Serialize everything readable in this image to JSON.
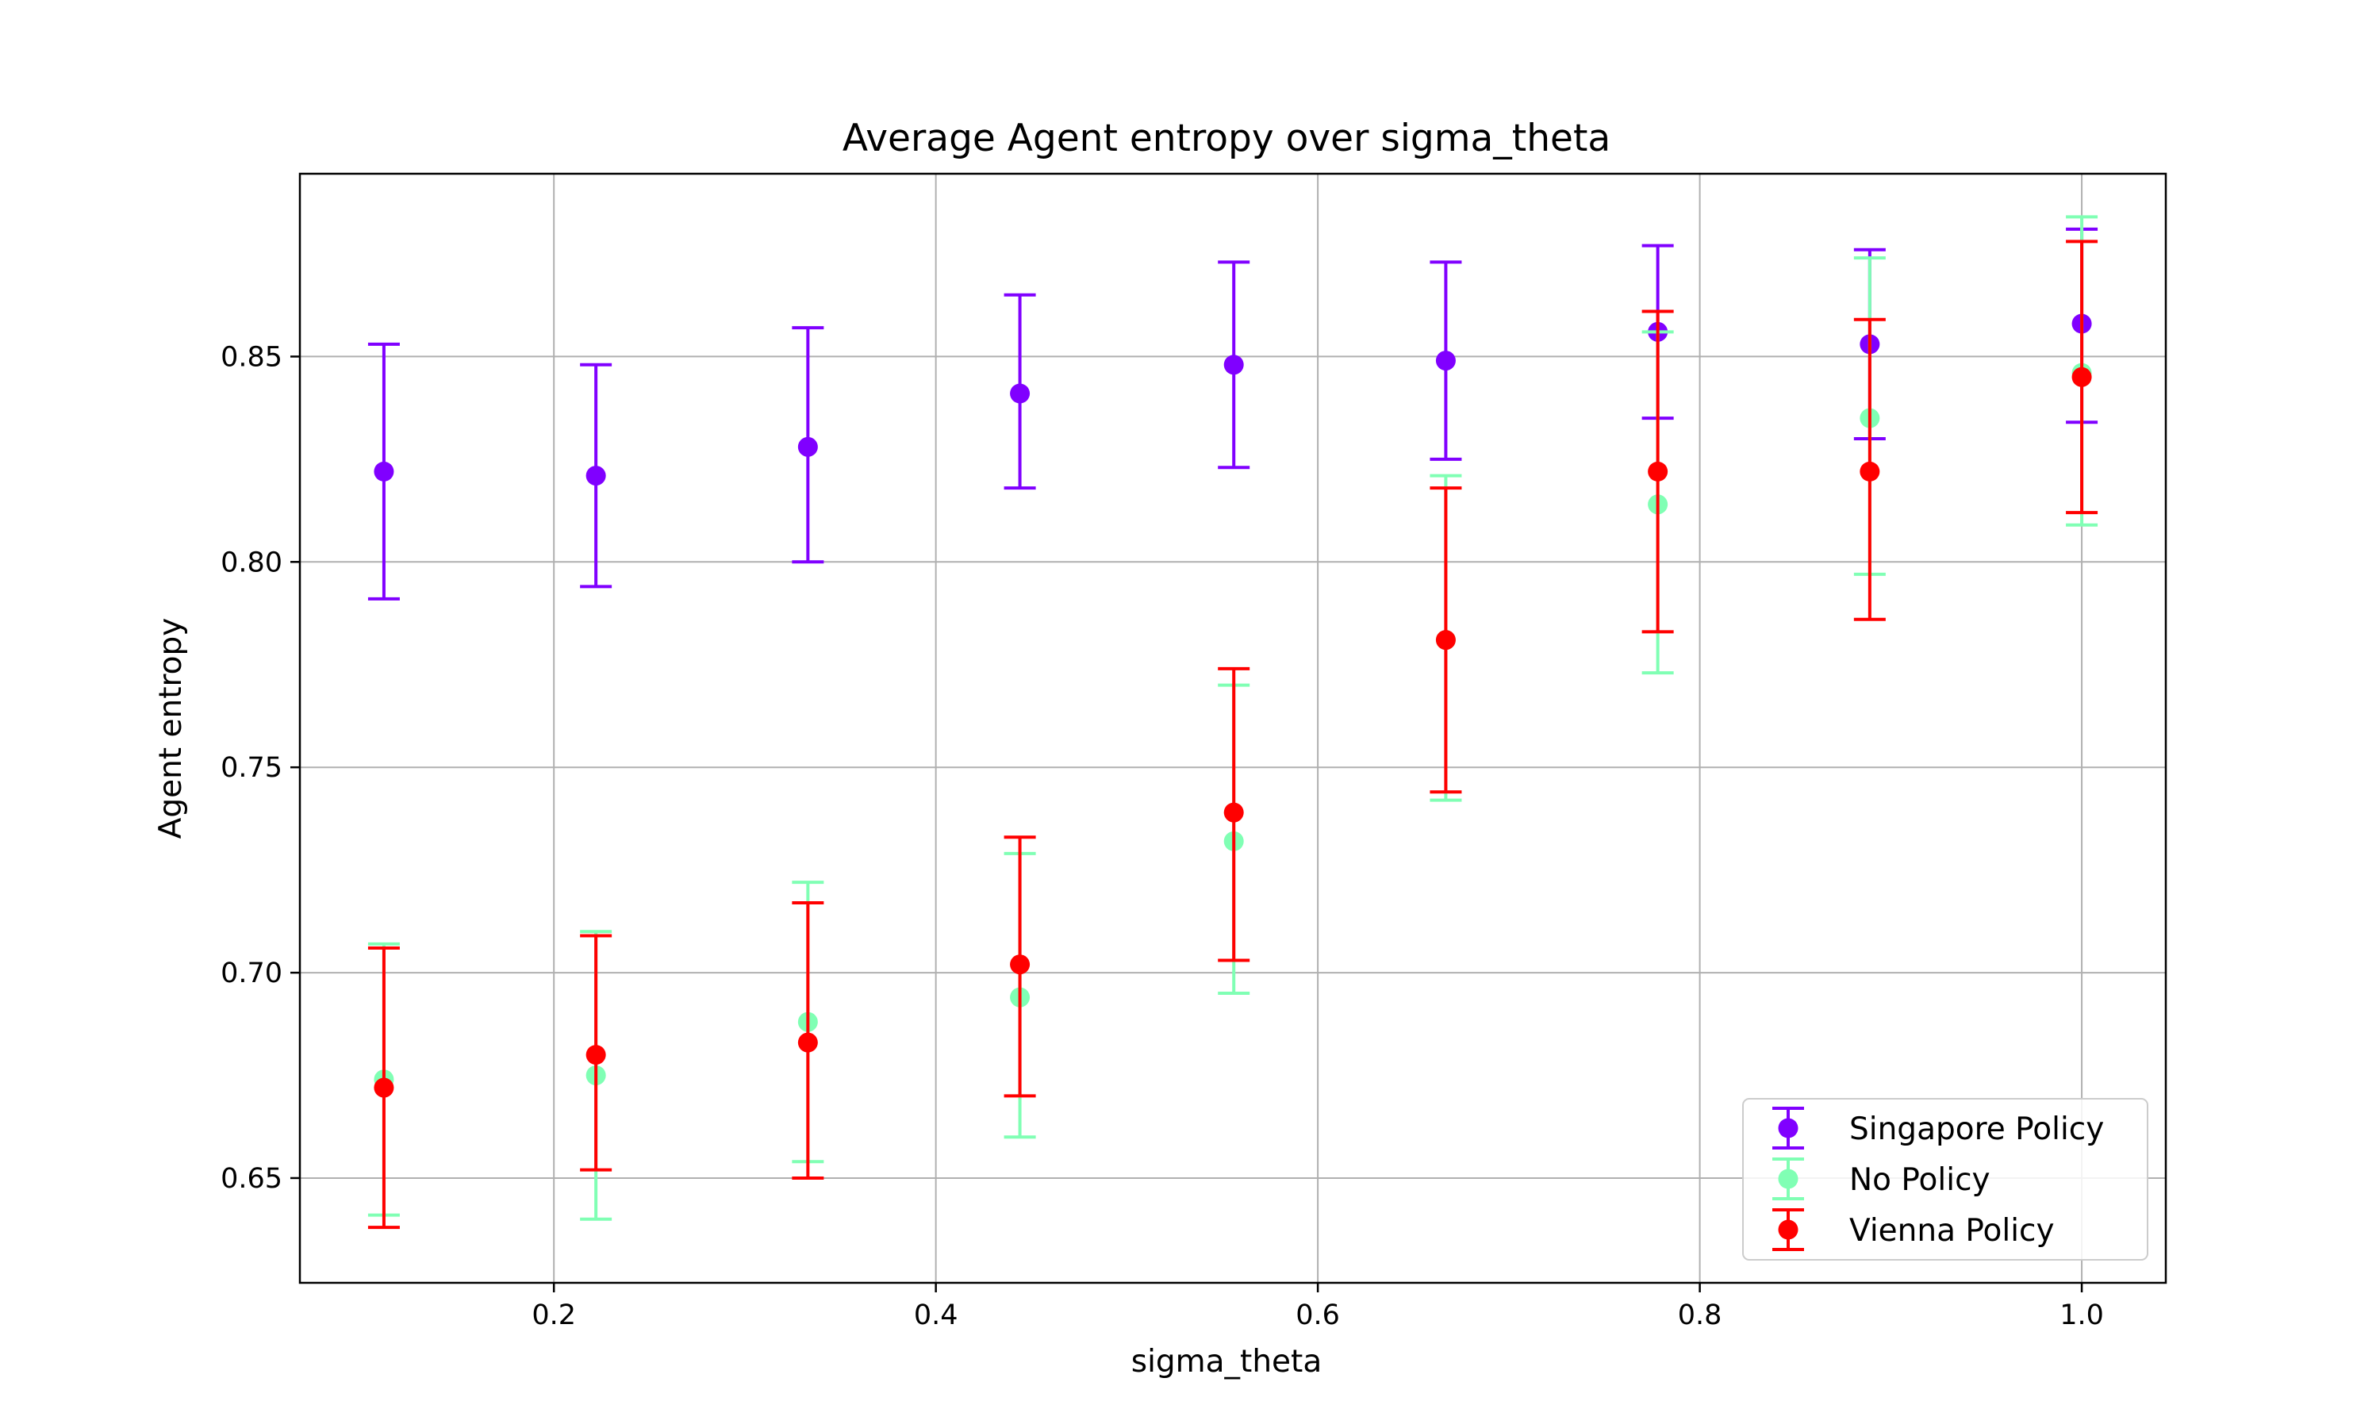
{
  "chart_data": {
    "type": "scatter",
    "title": "Average Agent entropy over sigma_theta",
    "xlabel": "sigma_theta",
    "ylabel": "Agent entropy",
    "xlim": [
      0.067,
      1.044
    ],
    "ylim": [
      0.6245,
      0.8945
    ],
    "xticks": [
      {
        "value": 0.2,
        "label": "0.2"
      },
      {
        "value": 0.4,
        "label": "0.4"
      },
      {
        "value": 0.6,
        "label": "0.6"
      },
      {
        "value": 0.8,
        "label": "0.8"
      },
      {
        "value": 1.0,
        "label": "1.0"
      }
    ],
    "yticks": [
      {
        "value": 0.65,
        "label": "0.65"
      },
      {
        "value": 0.7,
        "label": "0.70"
      },
      {
        "value": 0.75,
        "label": "0.75"
      },
      {
        "value": 0.8,
        "label": "0.80"
      },
      {
        "value": 0.85,
        "label": "0.85"
      }
    ],
    "grid": true,
    "legend_position": "bottom-right",
    "x": [
      0.111,
      0.222,
      0.333,
      0.444,
      0.556,
      0.667,
      0.778,
      0.889,
      1.0
    ],
    "series": [
      {
        "name": "Singapore Policy",
        "color": "#8000ff",
        "y": [
          0.822,
          0.821,
          0.828,
          0.841,
          0.848,
          0.849,
          0.856,
          0.853,
          0.858
        ],
        "lower": [
          0.791,
          0.794,
          0.8,
          0.818,
          0.823,
          0.825,
          0.835,
          0.83,
          0.834
        ],
        "upper": [
          0.853,
          0.848,
          0.857,
          0.865,
          0.873,
          0.873,
          0.877,
          0.876,
          0.881
        ]
      },
      {
        "name": "No Policy",
        "color": "#80ffb4",
        "y": [
          0.674,
          0.675,
          0.688,
          0.694,
          0.732,
          0.781,
          0.814,
          0.835,
          0.846
        ],
        "lower": [
          0.641,
          0.64,
          0.654,
          0.66,
          0.695,
          0.742,
          0.773,
          0.797,
          0.809
        ],
        "upper": [
          0.707,
          0.71,
          0.722,
          0.729,
          0.77,
          0.821,
          0.856,
          0.874,
          0.884
        ]
      },
      {
        "name": "Vienna Policy",
        "color": "#ff0000",
        "y": [
          0.672,
          0.68,
          0.683,
          0.702,
          0.739,
          0.781,
          0.822,
          0.822,
          0.845
        ],
        "lower": [
          0.638,
          0.652,
          0.65,
          0.67,
          0.703,
          0.744,
          0.783,
          0.786,
          0.812
        ],
        "upper": [
          0.706,
          0.709,
          0.717,
          0.733,
          0.774,
          0.818,
          0.861,
          0.859,
          0.878
        ]
      }
    ]
  }
}
